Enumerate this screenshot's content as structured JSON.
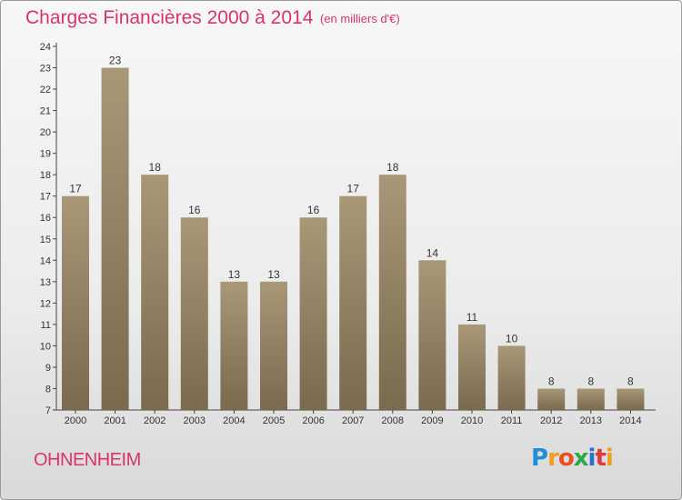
{
  "title": "Charges Financières 2000 à 2014",
  "unit_note": "(en milliers d'€)",
  "commune": "OHNENHEIM",
  "logo": {
    "letters": [
      "P",
      "r",
      "o",
      "x",
      "i",
      "t",
      "i"
    ],
    "colors": [
      "#1f8fd6",
      "#f0a020",
      "#e8501c",
      "#2aa84a",
      "#2b6fd1",
      "#e23a3a",
      "#f0a020"
    ]
  },
  "colors": {
    "accent": "#d9346a",
    "bar_light": "#a89878",
    "bar_dark": "#7a6a4e"
  },
  "chart_data": {
    "type": "bar",
    "title": "Charges Financières 2000 à 2014",
    "subtitle": "(en milliers d'€)",
    "categories": [
      "2000",
      "2001",
      "2002",
      "2003",
      "2004",
      "2005",
      "2006",
      "2007",
      "2008",
      "2009",
      "2010",
      "2011",
      "2012",
      "2013",
      "2014"
    ],
    "values": [
      17,
      23,
      18,
      16,
      13,
      13,
      16,
      17,
      18,
      14,
      11,
      10,
      8,
      8,
      8
    ],
    "ylim": [
      7,
      24
    ],
    "yticks": [
      7,
      8,
      9,
      10,
      11,
      12,
      13,
      14,
      15,
      16,
      17,
      18,
      19,
      20,
      21,
      22,
      23,
      24
    ],
    "grid": false,
    "data_labels": true
  }
}
